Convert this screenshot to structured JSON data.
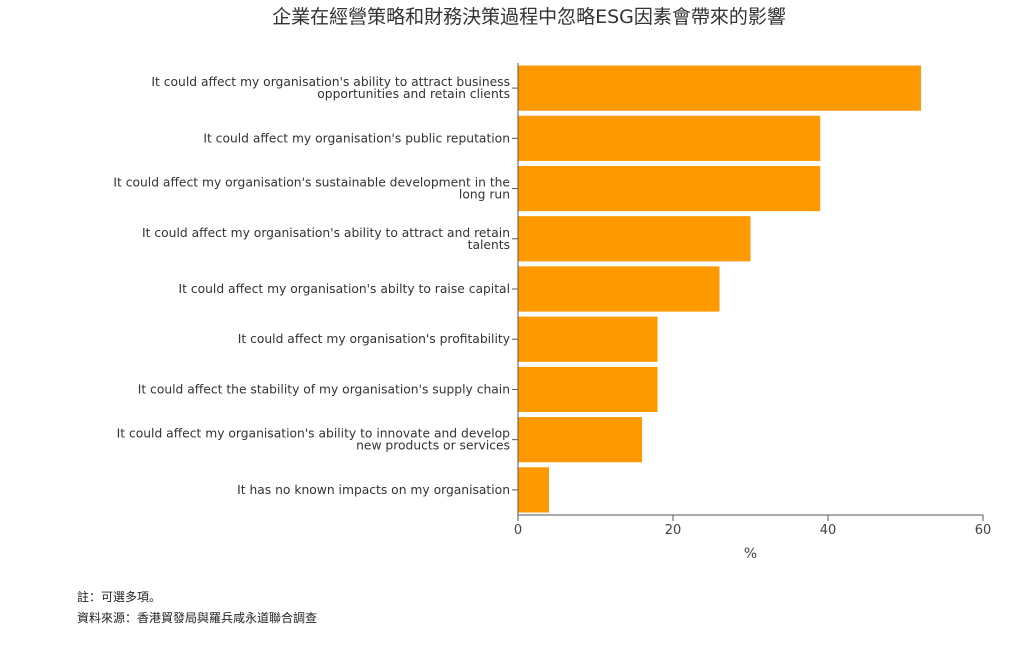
{
  "chart_data": {
    "type": "bar",
    "orientation": "horizontal",
    "title": "企業在經營策略和財務決策過程中忽略ESG因素會帶來的影響",
    "xlabel": "%",
    "ylabel": "",
    "xlim": [
      0,
      60
    ],
    "xticks": [
      "0",
      "20",
      "40",
      "60"
    ],
    "grid": false,
    "categories": [
      "It could affect my organisation's ability to attract business opportunities and retain clients",
      "It could affect my organisation's public reputation",
      "It could affect my organisation's sustainable development in the long run",
      "It could affect my organisation's ability to attract and retain talents",
      "It could affect my organisation's abilty to raise capital",
      "It could affect my organisation's profitability",
      "It could affect the stability of my organisation's supply chain",
      "It could affect my organisation's ability to innovate and develop new products or services",
      "It has no known impacts on my organisation"
    ],
    "category_lines": [
      [
        "It could affect my organisation's ability to attract business",
        "opportunities and retain clients"
      ],
      [
        "It could affect my organisation's public reputation"
      ],
      [
        "It could affect my organisation's sustainable development in the",
        "long run"
      ],
      [
        "It could affect my organisation's ability to attract and retain",
        "talents"
      ],
      [
        "It could affect my organisation's abilty to raise capital"
      ],
      [
        "It could affect my organisation's profitability"
      ],
      [
        "It could affect the stability of my organisation's supply chain"
      ],
      [
        "It could affect my organisation's ability to innovate and develop",
        "new products or services"
      ],
      [
        "It has no known impacts on my organisation"
      ]
    ],
    "values": [
      52,
      39,
      39,
      30,
      26,
      18,
      18,
      16,
      4
    ],
    "bar_color": "#ff9900"
  },
  "footnotes": {
    "note": "註：可選多項。",
    "source": "資料來源：香港貿發局與羅兵咸永道聯合調查"
  }
}
